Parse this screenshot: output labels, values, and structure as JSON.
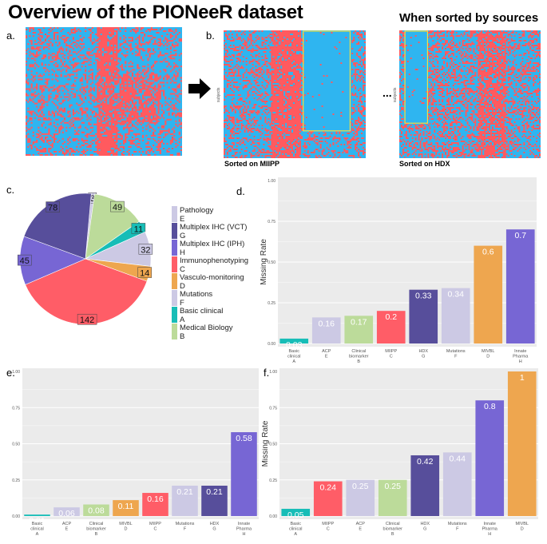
{
  "header": {
    "title": "Overview of the PIONeeR dataset",
    "subtitle": "When sorted by sources"
  },
  "panels": {
    "a": "a.",
    "b": "b.",
    "c": "c.",
    "d": "d.",
    "e": "e.",
    "f": "f."
  },
  "heatmaps": {
    "caption_miipp": "Sorted on MIIPP",
    "caption_hdx": "Sorted on HDX",
    "axis_label": "subjects",
    "ellipsis": "...",
    "colors": {
      "present": "#2fb5f0",
      "missing": "#ff5a5f",
      "highlight": "#f0e040"
    }
  },
  "colors": {
    "teal": "#17bdb7",
    "lavender": "#ccc9e4",
    "green": "#bcdb9a",
    "red": "#ff5d67",
    "indigo": "#574e9b",
    "orange": "#eea64f",
    "purple": "#7766d4",
    "panel_bg": "#ebebeb",
    "grid": "#ffffff"
  },
  "chart_data": [
    {
      "id": "c",
      "type": "pie",
      "slices": [
        {
          "label": "Pathology\nE",
          "value": 3,
          "color": "#ccc9e4"
        },
        {
          "label": "Medical Biology\nB",
          "value": 49,
          "color": "#bcdb9a"
        },
        {
          "label": "Basic clinical\nA",
          "value": 11,
          "color": "#17bdb7"
        },
        {
          "label": "Mutations\nF",
          "value": 32,
          "color": "#ccc9e4"
        },
        {
          "label": "Vasculo-monitoring\nD",
          "value": 14,
          "color": "#eea64f"
        },
        {
          "label": "Immunophenotyping\nC",
          "value": 142,
          "color": "#ff5d67"
        },
        {
          "label": "Multiplex IHC (IPH)\nH",
          "value": 45,
          "color": "#7766d4"
        },
        {
          "label": "Multiplex IHC (VCT)\nG",
          "value": 78,
          "color": "#574e9b"
        }
      ],
      "legend": [
        {
          "label": "Pathology",
          "code": "E",
          "color": "#ccc9e4"
        },
        {
          "label": "Multiplex IHC (VCT)",
          "code": "G",
          "color": "#574e9b"
        },
        {
          "label": "Multiplex IHC (IPH)",
          "code": "H",
          "color": "#7766d4"
        },
        {
          "label": "Immunophenotyping",
          "code": "C",
          "color": "#ff5d67"
        },
        {
          "label": "Vasculo-monitoring",
          "code": "D",
          "color": "#eea64f"
        },
        {
          "label": "Mutations",
          "code": "F",
          "color": "#ccc9e4"
        },
        {
          "label": "Basic clinical",
          "code": "A",
          "color": "#17bdb7"
        },
        {
          "label": "Medical Biology",
          "code": "B",
          "color": "#bcdb9a"
        }
      ],
      "legend_placement": "right"
    },
    {
      "id": "d",
      "type": "bar",
      "ylabel": "Missing Rate",
      "ylim": [
        0,
        1
      ],
      "yticks": [
        "0.00",
        "0.25",
        "0.50",
        "0.75",
        "1.00"
      ],
      "categories": [
        "Basic\nclinical\nA",
        "ACP\nE",
        "Clinical\nbiomarker\nB",
        "MIIPP\nC",
        "HDX\nG",
        "Mutations\nF",
        "MIVBL\nD",
        "Innate\nPharma\nH"
      ],
      "values": [
        0.03,
        0.16,
        0.17,
        0.2,
        0.33,
        0.34,
        0.6,
        0.7
      ],
      "value_labels": [
        "0.03",
        "0.16",
        "0.17",
        "0.2",
        "0.33",
        "0.34",
        "0.6",
        "0.7"
      ],
      "colors": [
        "#17bdb7",
        "#ccc9e4",
        "#bcdb9a",
        "#ff5d67",
        "#574e9b",
        "#ccc9e4",
        "#eea64f",
        "#7766d4"
      ],
      "grid": true
    },
    {
      "id": "e",
      "type": "bar",
      "ylabel": "",
      "ylim": [
        0,
        1
      ],
      "yticks": [
        "0.00",
        "0.25",
        "0.50",
        "0.75",
        "1.00"
      ],
      "categories": [
        "Basic\nclinical\nA",
        "ACP\nE",
        "Clinical\nbiomarker\nB",
        "MIVBL\nD",
        "MIIPP\nC",
        "Mutations\nF",
        "HDX\nG",
        "Innate\nPharma\nH"
      ],
      "values": [
        0.01,
        0.06,
        0.08,
        0.11,
        0.16,
        0.21,
        0.21,
        0.58
      ],
      "value_labels": [
        "0.01",
        "0.06",
        "0.08",
        "0.11",
        "0.16",
        "0.21",
        "0.21",
        "0.58"
      ],
      "colors": [
        "#17bdb7",
        "#ccc9e4",
        "#bcdb9a",
        "#eea64f",
        "#ff5d67",
        "#ccc9e4",
        "#574e9b",
        "#7766d4"
      ],
      "grid": true
    },
    {
      "id": "f",
      "type": "bar",
      "ylabel": "Missing Rate",
      "ylim": [
        0,
        1
      ],
      "yticks": [
        "0.00",
        "0.25",
        "0.50",
        "0.75",
        "1.00"
      ],
      "categories": [
        "Basic\nclinical\nA",
        "MIIPP\nC",
        "ACP\nE",
        "Clinical\nbiomarker\nB",
        "HDX\nG",
        "Mutations\nF",
        "Innate\nPharma\nH",
        "MIVBL\nD"
      ],
      "values": [
        0.05,
        0.24,
        0.25,
        0.25,
        0.42,
        0.44,
        0.8,
        1.0
      ],
      "value_labels": [
        "0.05",
        "0.24",
        "0.25",
        "0.25",
        "0.42",
        "0.44",
        "0.8",
        "1"
      ],
      "colors": [
        "#17bdb7",
        "#ff5d67",
        "#ccc9e4",
        "#bcdb9a",
        "#574e9b",
        "#ccc9e4",
        "#7766d4",
        "#eea64f"
      ],
      "grid": true
    }
  ]
}
